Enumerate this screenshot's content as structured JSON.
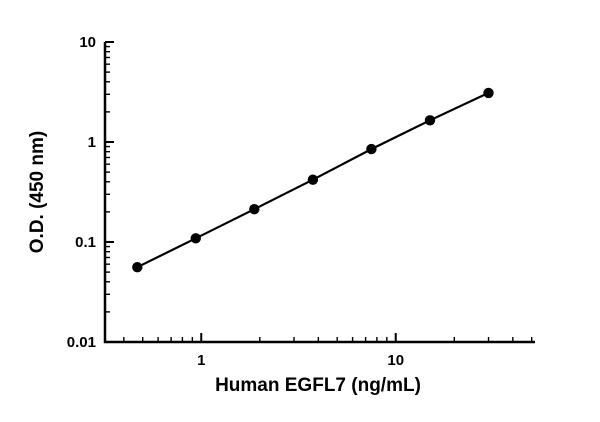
{
  "chart_data": {
    "type": "scatter",
    "subtype": "log-log standard curve with connecting line",
    "x": [
      0.469,
      0.938,
      1.875,
      3.75,
      7.5,
      15,
      30
    ],
    "y": [
      0.056,
      0.109,
      0.213,
      0.42,
      0.85,
      1.65,
      3.1
    ],
    "xlabel": "Human EGFL7 (ng/mL)",
    "ylabel": "O.D. (450 nm)",
    "x_scale": "log",
    "y_scale": "log",
    "xlim": [
      0.32,
      52
    ],
    "ylim": [
      0.01,
      10
    ],
    "xticks": [
      1,
      10
    ],
    "xtick_labels": [
      "1",
      "10"
    ],
    "yticks": [
      0.01,
      0.1,
      1,
      10
    ],
    "ytick_labels": [
      "0.01",
      "0.1",
      "1",
      "10"
    ],
    "grid": false,
    "legend": false,
    "title": "",
    "line_color": "#000000",
    "marker_color": "#000000",
    "background": "#ffffff"
  }
}
